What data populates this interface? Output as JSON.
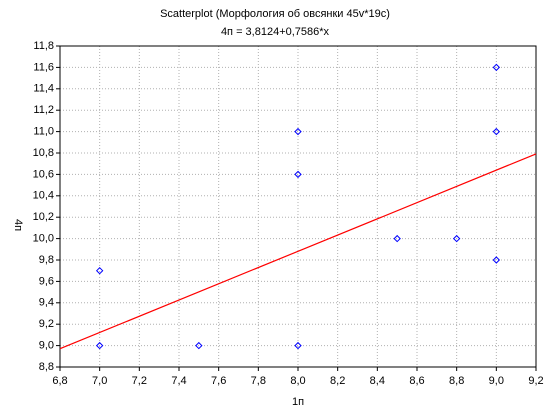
{
  "chart_data": {
    "type": "scatter",
    "title": "Scatterplot (Морфология об овсянки 45v*19c)",
    "subtitle": "4п = 3,8124+0,7586*x",
    "x_label": "1п",
    "y_label": "4п",
    "x": [
      7.0,
      7.0,
      7.5,
      8.0,
      8.0,
      8.0,
      8.5,
      8.8,
      9.0,
      9.0,
      9.0
    ],
    "series": [
      {
        "name": "4п",
        "color": "#0000ff",
        "values": [
          9.7,
          9.0,
          9.0,
          11.0,
          10.6,
          9.0,
          10.0,
          10.0,
          11.6,
          11.0,
          9.8
        ]
      }
    ],
    "regression": {
      "intercept": 3.8124,
      "slope": 0.7586,
      "color": "#ff0000"
    },
    "xlim": [
      6.8,
      9.2
    ],
    "ylim": [
      8.8,
      11.8
    ],
    "xticks": [
      {
        "value": 6.8,
        "label": "6,8"
      },
      {
        "value": 7.0,
        "label": "7,0"
      },
      {
        "value": 7.2,
        "label": "7,2"
      },
      {
        "value": 7.4,
        "label": "7,4"
      },
      {
        "value": 7.6,
        "label": "7,6"
      },
      {
        "value": 7.8,
        "label": "7,8"
      },
      {
        "value": 8.0,
        "label": "8,0"
      },
      {
        "value": 8.2,
        "label": "8,2"
      },
      {
        "value": 8.4,
        "label": "8,4"
      },
      {
        "value": 8.6,
        "label": "8,6"
      },
      {
        "value": 8.8,
        "label": "8,8"
      },
      {
        "value": 9.0,
        "label": "9,0"
      },
      {
        "value": 9.2,
        "label": "9,2"
      }
    ],
    "yticks": [
      {
        "value": 8.8,
        "label": "8,8"
      },
      {
        "value": 9.0,
        "label": "9,0"
      },
      {
        "value": 9.2,
        "label": "9,2"
      },
      {
        "value": 9.4,
        "label": "9,4"
      },
      {
        "value": 9.6,
        "label": "9,6"
      },
      {
        "value": 9.8,
        "label": "9,8"
      },
      {
        "value": 10.0,
        "label": "10,0"
      },
      {
        "value": 10.2,
        "label": "10,2"
      },
      {
        "value": 10.4,
        "label": "10,4"
      },
      {
        "value": 10.6,
        "label": "10,6"
      },
      {
        "value": 10.8,
        "label": "10,8"
      },
      {
        "value": 11.0,
        "label": "11,0"
      },
      {
        "value": 11.2,
        "label": "11,2"
      },
      {
        "value": 11.4,
        "label": "11,4"
      },
      {
        "value": 11.6,
        "label": "11,6"
      },
      {
        "value": 11.8,
        "label": "11,8"
      }
    ],
    "grid": true
  }
}
